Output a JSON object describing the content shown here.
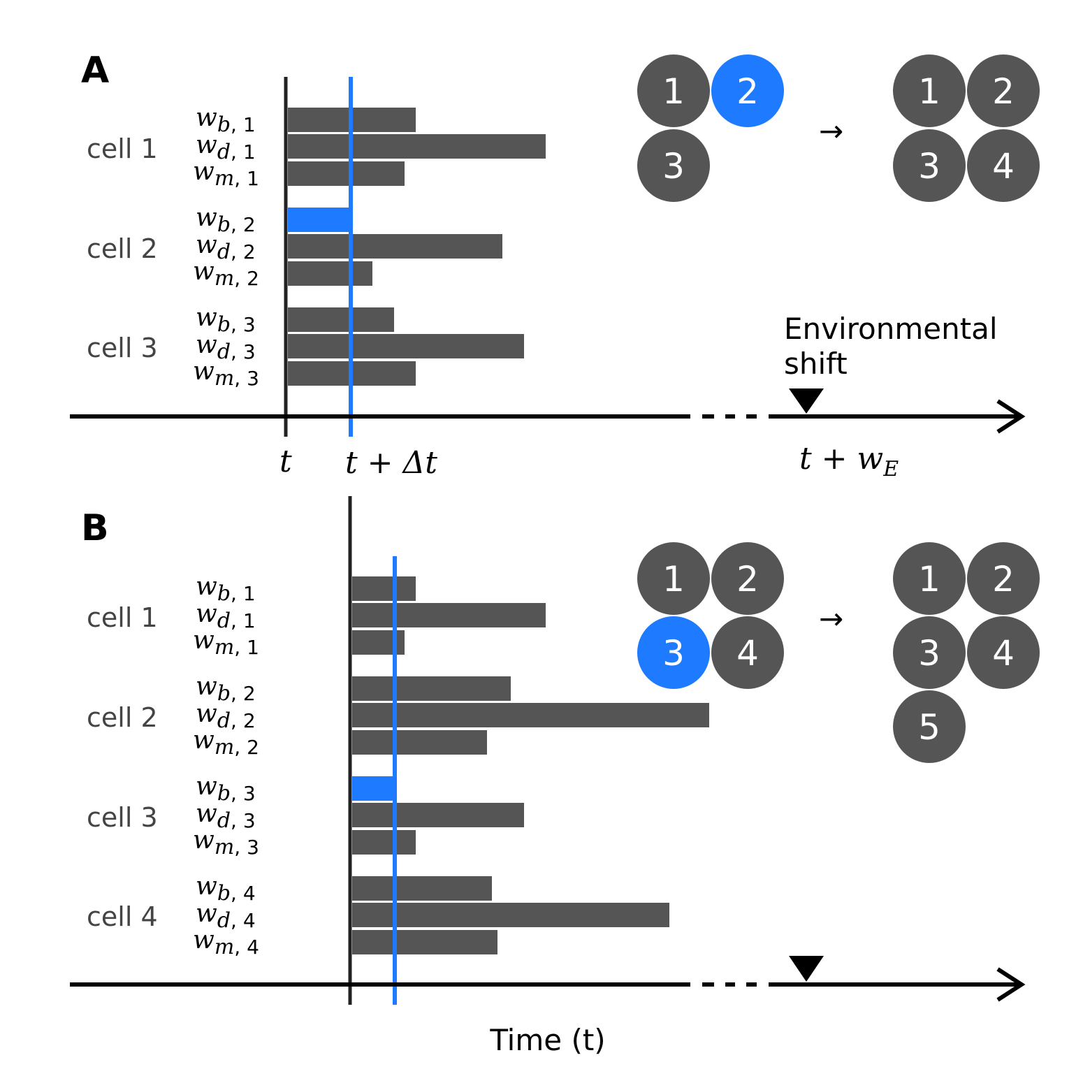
{
  "colors": {
    "bar": "#555555",
    "highlight": "#1e7bff",
    "axis": "#000000",
    "cell_text": "#444444"
  },
  "time_axis_title": "Time (t)",
  "panel_a": {
    "letter": "A",
    "cells": [
      {
        "label": "cell 1",
        "rows": [
          {
            "sub": "b",
            "num": "1"
          },
          {
            "sub": "d",
            "num": "1"
          },
          {
            "sub": "m",
            "num": "1"
          }
        ]
      },
      {
        "label": "cell 2",
        "rows": [
          {
            "sub": "b",
            "num": "2"
          },
          {
            "sub": "d",
            "num": "2"
          },
          {
            "sub": "m",
            "num": "2"
          }
        ]
      },
      {
        "label": "cell 3",
        "rows": [
          {
            "sub": "b",
            "num": "3"
          },
          {
            "sub": "d",
            "num": "3"
          },
          {
            "sub": "m",
            "num": "3"
          }
        ]
      }
    ],
    "tick_t": "t",
    "tick_t_dt": "t + Δt",
    "tick_t_we": "t + w",
    "tick_t_we_sub": "E",
    "env_shift_line1": "Environmental",
    "env_shift_line2": "shift",
    "before_cells": [
      "1",
      "2",
      "3"
    ],
    "highlighted_cell": "2",
    "after_cells": [
      "1",
      "2",
      "3",
      "4"
    ],
    "arrow": "→"
  },
  "panel_b": {
    "letter": "B",
    "cells": [
      {
        "label": "cell 1",
        "rows": [
          {
            "sub": "b",
            "num": "1"
          },
          {
            "sub": "d",
            "num": "1"
          },
          {
            "sub": "m",
            "num": "1"
          }
        ]
      },
      {
        "label": "cell 2",
        "rows": [
          {
            "sub": "b",
            "num": "2"
          },
          {
            "sub": "d",
            "num": "2"
          },
          {
            "sub": "m",
            "num": "2"
          }
        ]
      },
      {
        "label": "cell 3",
        "rows": [
          {
            "sub": "b",
            "num": "3"
          },
          {
            "sub": "d",
            "num": "3"
          },
          {
            "sub": "m",
            "num": "3"
          }
        ]
      },
      {
        "label": "cell 4",
        "rows": [
          {
            "sub": "b",
            "num": "4"
          },
          {
            "sub": "d",
            "num": "4"
          },
          {
            "sub": "m",
            "num": "4"
          }
        ]
      }
    ],
    "before_cells": [
      "1",
      "2",
      "3",
      "4"
    ],
    "highlighted_cell": "3",
    "after_cells": [
      "1",
      "2",
      "3",
      "4",
      "5"
    ],
    "arrow": "→"
  }
}
